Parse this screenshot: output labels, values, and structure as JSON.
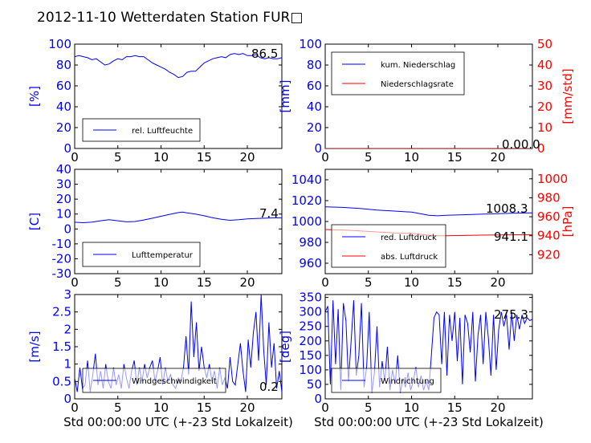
{
  "page": {
    "title": "2012-11-10 Wetterdaten Station FUR□"
  },
  "colors": {
    "blue": "#0000ff",
    "red": "#ff0000",
    "black": "#000000"
  },
  "chart_data": [
    {
      "id": "p1",
      "type": "line",
      "xlim": [
        0,
        24
      ],
      "xticks": [
        0,
        5,
        10,
        15,
        20
      ],
      "ylim": [
        0,
        100
      ],
      "yticks": [
        0,
        20,
        40,
        60,
        80,
        100
      ],
      "ylabel": "[%]",
      "xlabel": "",
      "legend_placement": "lower-left",
      "annotation": "86.5",
      "series": [
        {
          "name": "rel. Luftfeuchte",
          "color": "blue",
          "axis": "left",
          "x": [
            0,
            0.5,
            1,
            1.5,
            2,
            2.5,
            3,
            3.5,
            4,
            4.5,
            5,
            5.5,
            6,
            6.5,
            7,
            7.5,
            8,
            8.5,
            9,
            9.5,
            10,
            10.5,
            11,
            11.5,
            12,
            12.5,
            13,
            13.5,
            14,
            14.5,
            15,
            15.5,
            16,
            16.5,
            17,
            17.5,
            18,
            18.5,
            19,
            19.5,
            20,
            20.5,
            21,
            21.5,
            22,
            22.5,
            23,
            23.5,
            24
          ],
          "y": [
            88,
            89,
            88,
            87,
            85,
            86,
            83,
            80,
            81,
            84,
            86,
            85,
            88,
            88,
            89,
            88,
            88,
            85,
            82,
            80,
            78,
            76,
            73,
            71,
            68,
            69,
            73,
            74,
            74,
            78,
            82,
            84,
            86,
            87,
            88,
            87,
            90,
            91,
            90,
            91,
            89,
            89,
            90,
            87,
            86,
            87,
            86,
            86,
            87
          ]
        }
      ]
    },
    {
      "id": "p2",
      "type": "line",
      "xlim": [
        0,
        24
      ],
      "xticks": [
        0,
        5,
        10,
        15,
        20
      ],
      "ylim": [
        0,
        100
      ],
      "yticks": [
        0,
        20,
        40,
        60,
        80,
        100
      ],
      "ylabel": "[mm]",
      "ylim_right": [
        0,
        50
      ],
      "yticks_right": [
        0,
        10,
        20,
        30,
        40,
        50
      ],
      "ylabel_right": "[mm/std]",
      "xlabel": "",
      "legend_placement": "upper-left",
      "annotation": "0.00.0",
      "series": [
        {
          "name": "kum. Niederschlag",
          "color": "blue",
          "axis": "left",
          "x": [
            0,
            24
          ],
          "y": [
            0,
            0
          ]
        },
        {
          "name": "Niederschlagsrate",
          "color": "red",
          "axis": "right",
          "x": [
            0,
            24
          ],
          "y": [
            0,
            0
          ]
        }
      ]
    },
    {
      "id": "p3",
      "type": "line",
      "xlim": [
        0,
        24
      ],
      "xticks": [
        0,
        5,
        10,
        15,
        20
      ],
      "ylim": [
        -30,
        40
      ],
      "yticks": [
        -30,
        -20,
        -10,
        0,
        10,
        20,
        30,
        40
      ],
      "ylabel": "[C]",
      "xlabel": "",
      "legend_placement": "lower-left",
      "annotation": "7.4",
      "series": [
        {
          "name": "Lufttemperatur",
          "color": "blue",
          "axis": "left",
          "x": [
            0,
            1,
            2,
            3,
            4,
            5,
            6,
            7,
            8,
            9,
            10,
            11,
            12,
            12.5,
            13,
            14,
            15,
            16,
            17,
            18,
            19,
            20,
            21,
            22,
            23,
            24
          ],
          "y": [
            4.5,
            4.2,
            4.6,
            5.5,
            6.2,
            5.5,
            4.8,
            5.0,
            6.0,
            7.2,
            8.5,
            9.8,
            11.0,
            11.3,
            10.8,
            10.0,
            8.8,
            7.5,
            6.5,
            5.8,
            6.2,
            6.8,
            7.0,
            7.2,
            7.4,
            7.4
          ]
        }
      ]
    },
    {
      "id": "p4",
      "type": "line",
      "xlim": [
        0,
        24
      ],
      "xticks": [
        0,
        5,
        10,
        15,
        20
      ],
      "ylim": [
        950,
        1050
      ],
      "yticks": [
        960,
        980,
        1000,
        1020,
        1040
      ],
      "ylabel": "",
      "ylim_right": [
        900,
        1010
      ],
      "yticks_right": [
        920,
        940,
        960,
        980,
        1000
      ],
      "ylabel_right": "[hPa]",
      "xlabel": "",
      "legend_placement": "lower-left",
      "annotations": [
        "1008.3",
        "941.1"
      ],
      "series": [
        {
          "name": "red. Luftdruck",
          "color": "blue",
          "axis": "left",
          "x": [
            0,
            2,
            4,
            6,
            8,
            10,
            11,
            12,
            13,
            14,
            16,
            18,
            20,
            22,
            24
          ],
          "y": [
            1014,
            1013.5,
            1012.5,
            1011,
            1010,
            1009,
            1007.5,
            1006,
            1005.5,
            1006,
            1006.5,
            1007,
            1007.5,
            1008,
            1008.3
          ]
        },
        {
          "name": "abs. Luftdruck",
          "color": "red",
          "axis": "right",
          "x": [
            0,
            2,
            4,
            6,
            8,
            10,
            11,
            12,
            13,
            14,
            16,
            18,
            20,
            22,
            24
          ],
          "y": [
            946.5,
            946,
            945,
            944,
            943,
            942.5,
            941.5,
            940.5,
            940,
            940,
            940.3,
            940.6,
            940.8,
            941,
            941.1
          ]
        }
      ]
    },
    {
      "id": "p5",
      "type": "line",
      "xlim": [
        0,
        24
      ],
      "xticks": [
        0,
        5,
        10,
        15,
        20
      ],
      "ylim": [
        0,
        3.0
      ],
      "yticks": [
        0.0,
        0.5,
        1.0,
        1.5,
        2.0,
        2.5,
        3.0
      ],
      "ylabel": "[m/s]",
      "xlabel": "Std 00:00:00 UTC (+-23 Std Lokalzeit)",
      "legend_placement": "lower-left",
      "annotation": "0.2",
      "series": [
        {
          "name": "Windgeschwindigkeit",
          "color": "blue",
          "axis": "left",
          "x": [
            0,
            0.3,
            0.6,
            0.9,
            1.2,
            1.5,
            1.8,
            2.1,
            2.4,
            2.7,
            3.0,
            3.3,
            3.6,
            3.9,
            4.2,
            4.5,
            4.8,
            5.1,
            5.4,
            5.7,
            6.0,
            6.3,
            6.6,
            6.9,
            7.2,
            7.5,
            7.8,
            8.1,
            8.4,
            8.7,
            9.0,
            9.3,
            9.6,
            9.9,
            10.2,
            10.5,
            10.8,
            11.1,
            11.4,
            11.7,
            12.0,
            12.3,
            12.6,
            12.9,
            13.2,
            13.5,
            13.8,
            14.1,
            14.4,
            14.7,
            15.0,
            15.3,
            15.6,
            15.9,
            16.2,
            16.5,
            16.8,
            17.1,
            17.4,
            17.7,
            18.0,
            18.3,
            18.6,
            18.9,
            19.2,
            19.5,
            19.8,
            20.1,
            20.4,
            20.7,
            21.0,
            21.3,
            21.6,
            21.9,
            22.2,
            22.5,
            22.8,
            23.1,
            23.4,
            23.7,
            24.0
          ],
          "y": [
            0.6,
            0.2,
            0.9,
            0.3,
            0.4,
            1.1,
            0.2,
            0.7,
            1.3,
            0.4,
            0.8,
            0.3,
            1.0,
            0.5,
            0.3,
            0.9,
            0.4,
            0.7,
            0.3,
            1.0,
            0.6,
            0.3,
            0.8,
            1.1,
            0.4,
            0.9,
            0.5,
            1.0,
            0.6,
            0.9,
            1.1,
            0.5,
            0.8,
            1.2,
            0.4,
            0.9,
            0.5,
            0.7,
            0.4,
            0.3,
            0.6,
            0.5,
            0.9,
            1.8,
            0.7,
            2.8,
            1.2,
            2.2,
            0.8,
            1.5,
            0.9,
            0.6,
            1.0,
            0.5,
            0.8,
            0.3,
            0.9,
            0.4,
            0.6,
            0.3,
            1.2,
            0.5,
            0.4,
            1.0,
            1.6,
            0.8,
            0.2,
            1.7,
            0.9,
            1.9,
            2.5,
            1.1,
            3.0,
            1.4,
            0.4,
            2.2,
            0.9,
            1.6,
            0.3,
            0.8,
            0.2
          ]
        }
      ]
    },
    {
      "id": "p6",
      "type": "line",
      "xlim": [
        0,
        24
      ],
      "xticks": [
        0,
        5,
        10,
        15,
        20
      ],
      "ylim": [
        0,
        360
      ],
      "yticks": [
        0,
        50,
        100,
        150,
        200,
        250,
        300,
        350
      ],
      "ylabel": "[deg]",
      "xlabel": "Std 00:00:00 UTC (+-23 Std Lokalzeit)",
      "legend_placement": "lower-left",
      "annotation": "275.3",
      "series": [
        {
          "name": "Windrichtung",
          "color": "blue",
          "axis": "left",
          "x": [
            0,
            0.3,
            0.6,
            0.9,
            1.2,
            1.5,
            1.8,
            2.1,
            2.4,
            2.7,
            3.0,
            3.3,
            3.6,
            3.9,
            4.2,
            4.5,
            4.8,
            5.1,
            5.4,
            5.7,
            6.0,
            6.3,
            6.6,
            6.9,
            7.2,
            7.5,
            7.8,
            8.1,
            8.4,
            8.7,
            9.0,
            9.3,
            9.6,
            9.9,
            10.2,
            10.5,
            10.8,
            11.1,
            11.4,
            11.7,
            12.0,
            12.3,
            12.6,
            12.9,
            13.2,
            13.5,
            13.8,
            14.1,
            14.4,
            14.7,
            15.0,
            15.3,
            15.6,
            15.9,
            16.2,
            16.5,
            16.8,
            17.1,
            17.4,
            17.7,
            18.0,
            18.3,
            18.6,
            18.9,
            19.2,
            19.5,
            19.8,
            20.1,
            20.4,
            20.7,
            21.0,
            21.3,
            21.6,
            21.9,
            22.2,
            22.5,
            22.8,
            23.1,
            23.4,
            23.7,
            24.0
          ],
          "y": [
            300,
            320,
            50,
            340,
            120,
            310,
            30,
            330,
            270,
            60,
            200,
            340,
            80,
            150,
            330,
            40,
            110,
            300,
            20,
            90,
            250,
            40,
            130,
            60,
            180,
            30,
            100,
            50,
            150,
            20,
            70,
            40,
            90,
            30,
            60,
            110,
            40,
            80,
            30,
            60,
            30,
            150,
            280,
            300,
            290,
            120,
            300,
            80,
            290,
            200,
            300,
            130,
            280,
            50,
            290,
            260,
            160,
            300,
            60,
            220,
            290,
            120,
            300,
            210,
            80,
            290,
            100,
            240,
            300,
            250,
            290,
            170,
            300,
            200,
            290,
            240,
            290,
            260,
            280,
            270,
            275
          ]
        }
      ]
    }
  ]
}
